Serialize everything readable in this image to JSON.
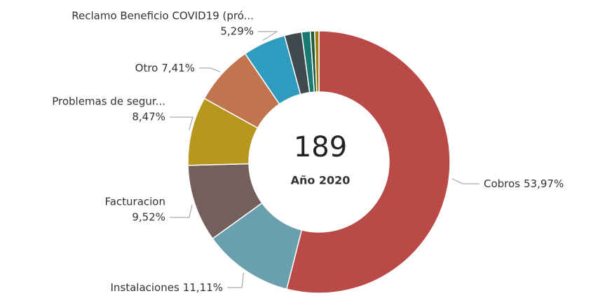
{
  "chart_data": {
    "type": "donut",
    "center_value": 189,
    "center_label": "Año 2020",
    "categories": [
      "Cobros",
      "Instalaciones",
      "Facturacion",
      "Problemas de segur...",
      "Otro",
      "Reclamo Beneficio COVID19 (pró...",
      null,
      null,
      null,
      null
    ],
    "values": [
      53.97,
      11.11,
      9.52,
      8.47,
      7.41,
      5.29,
      2.12,
      1.06,
      0.53,
      0.53
    ],
    "value_labels": [
      "53,97%",
      "11,11%",
      "9,52%",
      "8,47%",
      "7,41%",
      "5,29%",
      null,
      null,
      null,
      null
    ],
    "colors": [
      "#b94a48",
      "#6a9fae",
      "#735f5c",
      "#b8971f",
      "#c0754f",
      "#2f9bbf",
      "#3f4a4f",
      "#1a7a73",
      "#1f5c3a",
      "#a07d10"
    ]
  }
}
